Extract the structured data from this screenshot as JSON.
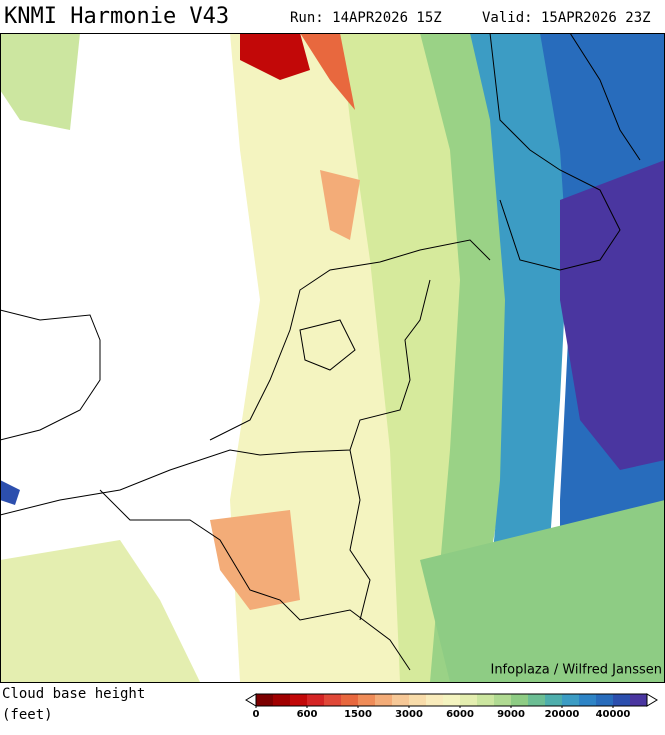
{
  "header": {
    "title": "KNMI Harmonie V43",
    "run": "Run: 14APR2026 15Z",
    "valid": "Valid: 15APR2026 23Z"
  },
  "map": {
    "credit": "Infoplaza / Wilfred Janssen"
  },
  "legend": {
    "title": "Cloud base height",
    "unit": "(feet)",
    "colors": [
      "#7c0000",
      "#a00000",
      "#c20808",
      "#d42424",
      "#e04838",
      "#e8683e",
      "#ef8c58",
      "#f3ac78",
      "#f6c897",
      "#f8dcaa",
      "#f9ecbc",
      "#f4f4c0",
      "#e4eeb0",
      "#cce6a0",
      "#b0da92",
      "#8ecc84",
      "#6cbe94",
      "#4eaeac",
      "#3c9cc4",
      "#2e84c6",
      "#286cbc",
      "#2c4fae",
      "#4a36a0"
    ],
    "ticks": [
      0,
      600,
      1500,
      3000,
      6000,
      9000,
      20000,
      40000
    ]
  }
}
